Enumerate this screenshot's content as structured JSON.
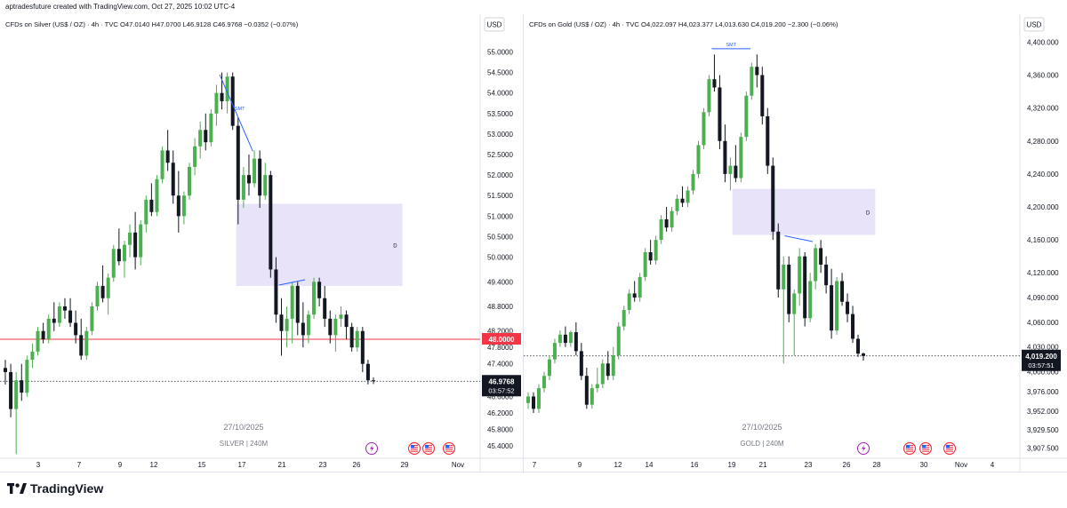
{
  "header": {
    "created_line": "aptradesfuture created with TradingView.com, Oct 27, 2025 10:02 UTC-4"
  },
  "brand": {
    "name": "TradingView",
    "icon": "tradingview-logo-icon"
  },
  "colors": {
    "up": "#4caf50",
    "down": "#131722",
    "zone": "#e4def7",
    "smt_line": "#2962ff",
    "level_line": "#f23645",
    "level_label_bg": "#f23645",
    "price_label_bg": "#131722"
  },
  "chart_data": [
    {
      "type": "candlestick",
      "legend": {
        "name": "CFDs on Silver (US$ / OZ) · 4h · TVC",
        "open": "O47.0140",
        "high": "H47.0700",
        "low": "L46.9128",
        "close": "C46.9768",
        "change": "−0.0352 (−0.07%)"
      },
      "currency": "USD",
      "ylim": [
        45.1,
        55.4
      ],
      "y_ticks": [
        {
          "v": 55.0,
          "t": "55.0000"
        },
        {
          "v": 54.5,
          "t": "54.5000"
        },
        {
          "v": 54.0,
          "t": "54.0000"
        },
        {
          "v": 53.5,
          "t": "53.5000"
        },
        {
          "v": 53.0,
          "t": "53.0000"
        },
        {
          "v": 52.5,
          "t": "52.5000"
        },
        {
          "v": 52.0,
          "t": "52.0000"
        },
        {
          "v": 51.5,
          "t": "51.5000"
        },
        {
          "v": 51.0,
          "t": "51.0000"
        },
        {
          "v": 50.5,
          "t": "50.5000"
        },
        {
          "v": 50.0,
          "t": "50.0000"
        },
        {
          "v": 49.4,
          "t": "49.4000"
        },
        {
          "v": 48.8,
          "t": "48.8000"
        },
        {
          "v": 48.2,
          "t": "48.2000"
        },
        {
          "v": 47.8,
          "t": "47.8000"
        },
        {
          "v": 47.4,
          "t": "47.4000"
        },
        {
          "v": 46.6,
          "t": "46.6000"
        },
        {
          "v": 46.2,
          "t": "46.2000"
        },
        {
          "v": 45.8,
          "t": "45.8000"
        },
        {
          "v": 45.4,
          "t": "45.4000"
        }
      ],
      "x_labels": [
        "3",
        "7",
        "9",
        "12",
        "15",
        "17",
        "21",
        "23",
        "26",
        "29",
        "Nov"
      ],
      "watermark_date": "27/10/2025",
      "watermark_symbol": "SILVER | 240M",
      "level": {
        "value": 48.0,
        "label": "48.0000"
      },
      "last": {
        "value": 46.9768,
        "label": "46.9768",
        "countdown": "03:57:52"
      },
      "zone": {
        "x0": 0.49,
        "x1": 0.84,
        "y_top": 51.3,
        "y_bottom": 49.3,
        "label": "D"
      },
      "smt_label": "SMT",
      "smt_line": {
        "from": [
          0.455,
          54.45
        ],
        "to": [
          0.525,
          52.58
        ]
      },
      "smt_line2": {
        "from": [
          0.58,
          49.32
        ],
        "to": [
          0.635,
          49.45
        ]
      },
      "event_icons": [
        "lightning-icon",
        "us-flag-icon",
        "us-flag-icon",
        "us-flag-icon"
      ],
      "ohlc": [
        [
          47.3,
          47.5,
          46.9,
          47.2
        ],
        [
          47.2,
          47.4,
          46.1,
          46.3
        ],
        [
          46.3,
          47.2,
          45.2,
          47.0
        ],
        [
          47.0,
          47.4,
          46.5,
          46.7
        ],
        [
          46.7,
          47.6,
          46.6,
          47.5
        ],
        [
          47.5,
          47.9,
          47.3,
          47.7
        ],
        [
          47.7,
          48.3,
          47.6,
          48.2
        ],
        [
          48.2,
          48.4,
          47.9,
          48.0
        ],
        [
          48.0,
          48.6,
          47.9,
          48.5
        ],
        [
          48.5,
          48.9,
          48.2,
          48.4
        ],
        [
          48.4,
          48.9,
          48.3,
          48.8
        ],
        [
          48.8,
          49.0,
          48.5,
          48.7
        ],
        [
          48.7,
          49.0,
          48.3,
          48.4
        ],
        [
          48.4,
          48.7,
          47.9,
          48.1
        ],
        [
          48.1,
          48.5,
          47.5,
          47.6
        ],
        [
          47.6,
          48.3,
          47.5,
          48.2
        ],
        [
          48.2,
          48.9,
          48.1,
          48.8
        ],
        [
          48.8,
          49.4,
          48.7,
          49.3
        ],
        [
          49.3,
          49.8,
          48.9,
          49.0
        ],
        [
          49.0,
          49.6,
          48.6,
          49.5
        ],
        [
          49.5,
          50.3,
          49.4,
          50.2
        ],
        [
          50.2,
          50.7,
          49.8,
          49.9
        ],
        [
          49.9,
          50.4,
          49.5,
          50.3
        ],
        [
          50.3,
          50.8,
          50.0,
          50.6
        ],
        [
          50.6,
          51.1,
          49.7,
          50.0
        ],
        [
          50.0,
          50.9,
          49.8,
          50.8
        ],
        [
          50.8,
          51.5,
          50.6,
          51.4
        ],
        [
          51.4,
          51.8,
          51.0,
          51.1
        ],
        [
          51.1,
          52.0,
          51.0,
          51.9
        ],
        [
          51.9,
          52.7,
          51.8,
          52.6
        ],
        [
          52.6,
          53.1,
          52.1,
          52.3
        ],
        [
          52.3,
          52.6,
          51.3,
          51.5
        ],
        [
          51.5,
          52.1,
          50.6,
          51.0
        ],
        [
          51.0,
          51.6,
          50.8,
          51.5
        ],
        [
          51.5,
          52.3,
          51.4,
          52.2
        ],
        [
          52.2,
          52.9,
          52.0,
          52.7
        ],
        [
          52.7,
          53.3,
          52.4,
          53.1
        ],
        [
          53.1,
          53.5,
          52.6,
          52.8
        ],
        [
          52.8,
          53.6,
          52.7,
          53.5
        ],
        [
          53.5,
          54.2,
          53.2,
          54.0
        ],
        [
          54.0,
          54.5,
          53.6,
          53.8
        ],
        [
          53.8,
          54.5,
          53.5,
          54.4
        ],
        [
          54.4,
          54.5,
          53.1,
          53.2
        ],
        [
          53.2,
          53.4,
          50.8,
          51.4
        ],
        [
          51.4,
          52.2,
          51.2,
          52.0
        ],
        [
          52.0,
          52.5,
          51.5,
          51.8
        ],
        [
          51.8,
          52.6,
          51.7,
          52.4
        ],
        [
          52.4,
          52.6,
          51.2,
          51.5
        ],
        [
          51.5,
          52.3,
          51.4,
          52.0
        ],
        [
          52.0,
          52.1,
          49.5,
          49.7
        ],
        [
          49.7,
          50.0,
          48.4,
          48.6
        ],
        [
          48.6,
          49.0,
          47.6,
          48.2
        ],
        [
          48.2,
          48.8,
          47.8,
          48.5
        ],
        [
          48.5,
          49.4,
          47.9,
          49.3
        ],
        [
          49.3,
          49.4,
          48.1,
          48.4
        ],
        [
          48.4,
          48.9,
          47.8,
          48.1
        ],
        [
          48.1,
          48.7,
          47.9,
          48.6
        ],
        [
          48.6,
          49.5,
          48.5,
          49.4
        ],
        [
          49.4,
          49.5,
          48.8,
          49.0
        ],
        [
          49.0,
          49.3,
          48.3,
          48.5
        ],
        [
          48.5,
          48.7,
          47.9,
          48.1
        ],
        [
          48.1,
          48.6,
          47.7,
          48.5
        ],
        [
          48.5,
          48.8,
          48.3,
          48.6
        ],
        [
          48.6,
          48.7,
          48.0,
          48.3
        ],
        [
          48.3,
          48.4,
          47.7,
          47.8
        ],
        [
          47.8,
          48.3,
          47.7,
          48.2
        ],
        [
          48.2,
          48.3,
          47.2,
          47.4
        ],
        [
          47.4,
          47.5,
          46.9,
          47.0
        ],
        [
          47.0,
          47.07,
          46.91,
          46.98
        ]
      ]
    },
    {
      "type": "candlestick",
      "legend": {
        "name": "CFDs on Gold (US$ / OZ) · 4h · TVC",
        "open": "O4,022.097",
        "high": "H4,023.377",
        "low": "L4,013.630",
        "close": "C4,019.200",
        "change": "−2.300 (−0.06%)"
      },
      "currency": "USD",
      "ylim": [
        3895,
        4408
      ],
      "y_ticks": [
        {
          "v": 4400,
          "t": "4,400.000"
        },
        {
          "v": 4360,
          "t": "4,360.000"
        },
        {
          "v": 4320,
          "t": "4,320.000"
        },
        {
          "v": 4280,
          "t": "4,280.000"
        },
        {
          "v": 4240,
          "t": "4,240.000"
        },
        {
          "v": 4200,
          "t": "4,200.000"
        },
        {
          "v": 4160,
          "t": "4,160.000"
        },
        {
          "v": 4120,
          "t": "4,120.000"
        },
        {
          "v": 4090,
          "t": "4,090.000"
        },
        {
          "v": 4060,
          "t": "4,060.000"
        },
        {
          "v": 4030,
          "t": "4,030.000"
        },
        {
          "v": 4000,
          "t": "4,000.000"
        },
        {
          "v": 3976,
          "t": "3,976.000"
        },
        {
          "v": 3952,
          "t": "3,952.000"
        },
        {
          "v": 3929.5,
          "t": "3,929.500"
        },
        {
          "v": 3907.5,
          "t": "3,907.500"
        }
      ],
      "x_labels": [
        "7",
        "9",
        "12",
        "14",
        "16",
        "19",
        "21",
        "23",
        "26",
        "28",
        "30",
        "Nov",
        "4"
      ],
      "watermark_date": "27/10/2025",
      "watermark_symbol": "GOLD | 240M",
      "last": {
        "value": 4019.2,
        "label": "4,019.200",
        "countdown": "03:57:51"
      },
      "zone": {
        "x0": 0.42,
        "x1": 0.71,
        "y_top": 4222,
        "y_bottom": 4166,
        "label": "D"
      },
      "smt_label": "SMT",
      "smt_line": {
        "from": [
          0.378,
          4392
        ],
        "to": [
          0.457,
          4392
        ]
      },
      "smt_line2": {
        "from": [
          0.526,
          4165
        ],
        "to": [
          0.583,
          4158
        ]
      },
      "event_icons": [
        "lightning-icon",
        "us-flag-icon",
        "us-flag-icon",
        "us-flag-icon"
      ],
      "ohlc": [
        [
          3962,
          3975,
          3955,
          3970
        ],
        [
          3970,
          3975,
          3950,
          3955
        ],
        [
          3955,
          3985,
          3950,
          3980
        ],
        [
          3980,
          4000,
          3975,
          3995
        ],
        [
          3995,
          4020,
          3990,
          4015
        ],
        [
          4015,
          4040,
          4010,
          4035
        ],
        [
          4035,
          4050,
          4030,
          4045
        ],
        [
          4045,
          4055,
          4030,
          4035
        ],
        [
          4035,
          4050,
          4030,
          4048
        ],
        [
          4048,
          4060,
          4020,
          4025
        ],
        [
          4025,
          4035,
          3990,
          3995
        ],
        [
          3995,
          4005,
          3955,
          3960
        ],
        [
          3960,
          3985,
          3955,
          3980
        ],
        [
          3980,
          4005,
          3975,
          3985
        ],
        [
          3985,
          4015,
          3980,
          4010
        ],
        [
          4010,
          4025,
          3990,
          3995
        ],
        [
          3995,
          4030,
          3990,
          4020
        ],
        [
          4020,
          4060,
          4015,
          4055
        ],
        [
          4055,
          4080,
          4050,
          4075
        ],
        [
          4075,
          4100,
          4070,
          4095
        ],
        [
          4095,
          4110,
          4085,
          4090
        ],
        [
          4090,
          4120,
          4085,
          4115
        ],
        [
          4115,
          4150,
          4110,
          4145
        ],
        [
          4145,
          4160,
          4130,
          4135
        ],
        [
          4135,
          4165,
          4130,
          4160
        ],
        [
          4160,
          4190,
          4155,
          4185
        ],
        [
          4185,
          4200,
          4170,
          4175
        ],
        [
          4175,
          4200,
          4170,
          4195
        ],
        [
          4195,
          4215,
          4190,
          4210
        ],
        [
          4210,
          4225,
          4200,
          4205
        ],
        [
          4205,
          4225,
          4200,
          4220
        ],
        [
          4220,
          4245,
          4215,
          4240
        ],
        [
          4240,
          4280,
          4235,
          4275
        ],
        [
          4275,
          4320,
          4270,
          4315
        ],
        [
          4315,
          4360,
          4310,
          4355
        ],
        [
          4355,
          4385,
          4340,
          4345
        ],
        [
          4345,
          4360,
          4270,
          4280
        ],
        [
          4280,
          4300,
          4230,
          4240
        ],
        [
          4240,
          4260,
          4220,
          4250
        ],
        [
          4250,
          4275,
          4230,
          4235
        ],
        [
          4235,
          4290,
          4230,
          4285
        ],
        [
          4285,
          4340,
          4280,
          4335
        ],
        [
          4335,
          4375,
          4330,
          4370
        ],
        [
          4370,
          4385,
          4345,
          4360
        ],
        [
          4360,
          4370,
          4300,
          4310
        ],
        [
          4310,
          4320,
          4240,
          4250
        ],
        [
          4250,
          4260,
          4160,
          4170
        ],
        [
          4170,
          4180,
          4090,
          4100
        ],
        [
          4100,
          4140,
          4010,
          4130
        ],
        [
          4130,
          4140,
          4060,
          4070
        ],
        [
          4070,
          4100,
          4020,
          4095
        ],
        [
          4095,
          4150,
          4080,
          4140
        ],
        [
          4140,
          4145,
          4055,
          4065
        ],
        [
          4065,
          4120,
          4060,
          4110
        ],
        [
          4110,
          4155,
          4100,
          4150
        ],
        [
          4150,
          4160,
          4120,
          4130
        ],
        [
          4130,
          4140,
          4095,
          4105
        ],
        [
          4105,
          4125,
          4040,
          4050
        ],
        [
          4050,
          4115,
          4045,
          4110
        ],
        [
          4110,
          4120,
          4080,
          4085
        ],
        [
          4085,
          4095,
          4060,
          4070
        ],
        [
          4070,
          4080,
          4035,
          4040
        ],
        [
          4040,
          4045,
          4018,
          4022
        ],
        [
          4022.1,
          4023.4,
          4013.6,
          4019.2
        ]
      ]
    }
  ]
}
